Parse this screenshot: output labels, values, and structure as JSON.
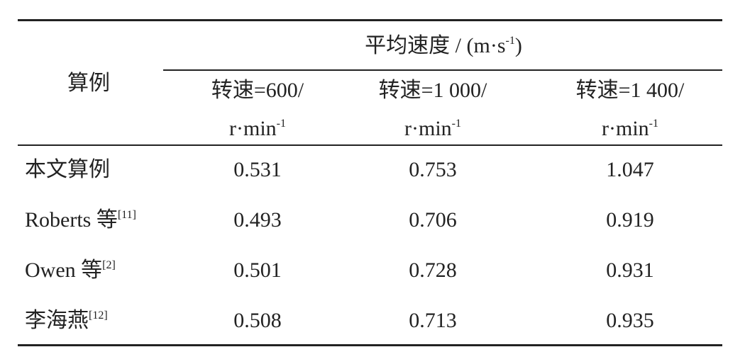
{
  "table": {
    "corner": "算例",
    "group_header": {
      "text": "平均速度 / (m·s",
      "sup": "-1",
      "tail": ")"
    },
    "columns": [
      {
        "line1": "转速=600/",
        "line2": "r·min",
        "sup": "-1"
      },
      {
        "line1": "转速=1 000/",
        "line2": "r·min",
        "sup": "-1"
      },
      {
        "line1": "转速=1 400/",
        "line2": "r·min",
        "sup": "-1"
      }
    ],
    "rows": [
      {
        "label": "本文算例",
        "values": [
          0.531,
          0.753,
          1.047
        ]
      },
      {
        "label": "Roberts 等",
        "ref": "[11]",
        "values": [
          0.493,
          0.706,
          0.919
        ]
      },
      {
        "label": "Owen 等",
        "ref": "[2]",
        "values": [
          0.501,
          0.728,
          0.931
        ]
      },
      {
        "label": "李海燕",
        "ref": "[12]",
        "values": [
          0.508,
          0.713,
          0.935
        ]
      }
    ]
  }
}
